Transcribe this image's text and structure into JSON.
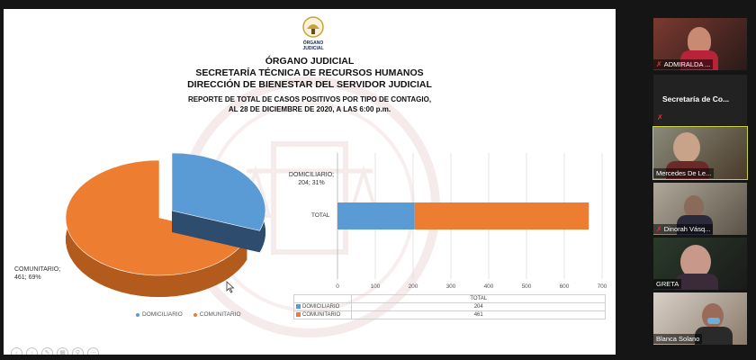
{
  "slide": {
    "org": "ÓRGANO JUDICIAL",
    "secretariat": "SECRETARÍA TÉCNICA DE RECURSOS HUMANOS",
    "direction": "DIRECCIÓN DE BIENESTAR DEL SERVIDOR JUDICIAL",
    "report_line1": "REPORTE DE TOTAL DE CASOS POSITIVOS POR TIPO DE CONTAGIO,",
    "report_line2": "AL 28 DE DICIEMBRE DE 2020, A LAS 6:00 p.m.",
    "logo_text_1": "ÓRGANO",
    "logo_text_2": "JUDICIAL"
  },
  "chart_data": [
    {
      "type": "pie",
      "labels": [
        "DOMICILIARIO",
        "COMUNITARIO"
      ],
      "values": [
        204,
        461
      ],
      "percents": [
        31,
        69
      ],
      "slice_labels": [
        "DOMICILIARIO; 204; 31%",
        "COMUNITARIO; 461; 69%"
      ],
      "legend": [
        "DOMICILIARIO",
        "COMUNITARIO"
      ],
      "legend_position": "bottom",
      "colors": [
        "#5b9bd5",
        "#ed7d31"
      ]
    },
    {
      "type": "bar",
      "orientation": "horizontal-stacked",
      "categories": [
        "TOTAL"
      ],
      "series": [
        {
          "name": "DOMICILIARIO",
          "values": [
            204
          ],
          "color": "#5b9bd5"
        },
        {
          "name": "COMUNITARIO",
          "values": [
            461
          ],
          "color": "#ed7d31"
        }
      ],
      "xlim": [
        0,
        700
      ],
      "xticks": [
        0,
        100,
        200,
        300,
        400,
        500,
        600,
        700
      ],
      "grid": true,
      "data_table": {
        "header": "TOTAL",
        "rows": [
          {
            "name": "DOMICILIARIO",
            "value": "204"
          },
          {
            "name": "COMUNITARIO",
            "value": "461"
          }
        ]
      }
    }
  ],
  "slide_controls": [
    {
      "icon": "prev-icon",
      "glyph": "‹"
    },
    {
      "icon": "next-icon",
      "glyph": "›"
    },
    {
      "icon": "pen-icon",
      "glyph": "✎"
    },
    {
      "icon": "slides-icon",
      "glyph": "▦"
    },
    {
      "icon": "zoom-icon",
      "glyph": "⚲"
    },
    {
      "icon": "more-icon",
      "glyph": "⋯"
    }
  ],
  "participants": [
    {
      "name": "ADMIRALDA ...",
      "muted": true
    },
    {
      "name": "Secretaría de Co...",
      "muted": true
    },
    {
      "name": "Mercedes De Le...",
      "muted": false,
      "active": true
    },
    {
      "name": "Dinorah Vásq...",
      "muted": true
    },
    {
      "name": "GRETA",
      "muted": false
    },
    {
      "name": "Blanca Solano",
      "muted": false
    }
  ],
  "colors": {
    "domiciliario": "#5b9bd5",
    "domiciliario_dark": "#2e4c6e",
    "comunitario": "#ed7d31",
    "comunitario_dark": "#b35a1d",
    "speaking_outline": "#c8d33a",
    "muted": "#e0343c"
  }
}
